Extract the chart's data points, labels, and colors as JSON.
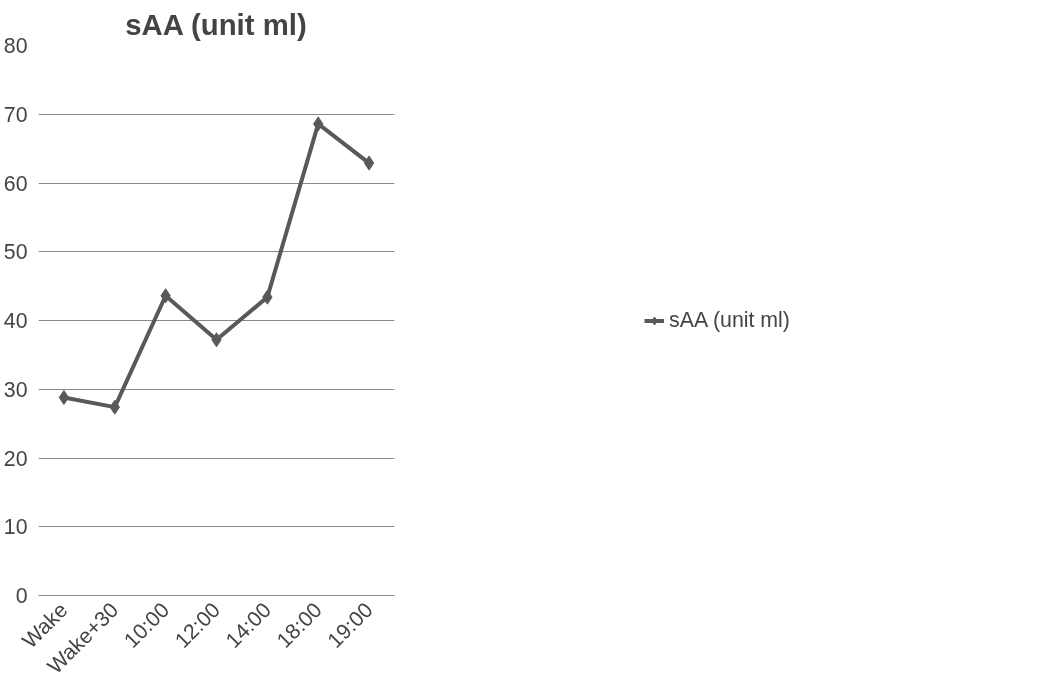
{
  "chart_data": {
    "type": "line",
    "title": "sAA (unit ml)",
    "categories": [
      "Wake",
      "Wake+30",
      "10:00",
      "12:00",
      "14:00",
      "18:00",
      "19:00"
    ],
    "series": [
      {
        "name": "sAA (unit ml)",
        "color": "#595959",
        "values": [
          28.8,
          27.4,
          43.6,
          37.2,
          43.4,
          68.6,
          62.9
        ]
      }
    ],
    "ylim": [
      0,
      80
    ],
    "yticks": [
      0,
      10,
      20,
      30,
      40,
      50,
      60,
      70,
      80
    ],
    "grid": "y",
    "legend": "right",
    "marker": "diamond",
    "line_style": "solid"
  }
}
